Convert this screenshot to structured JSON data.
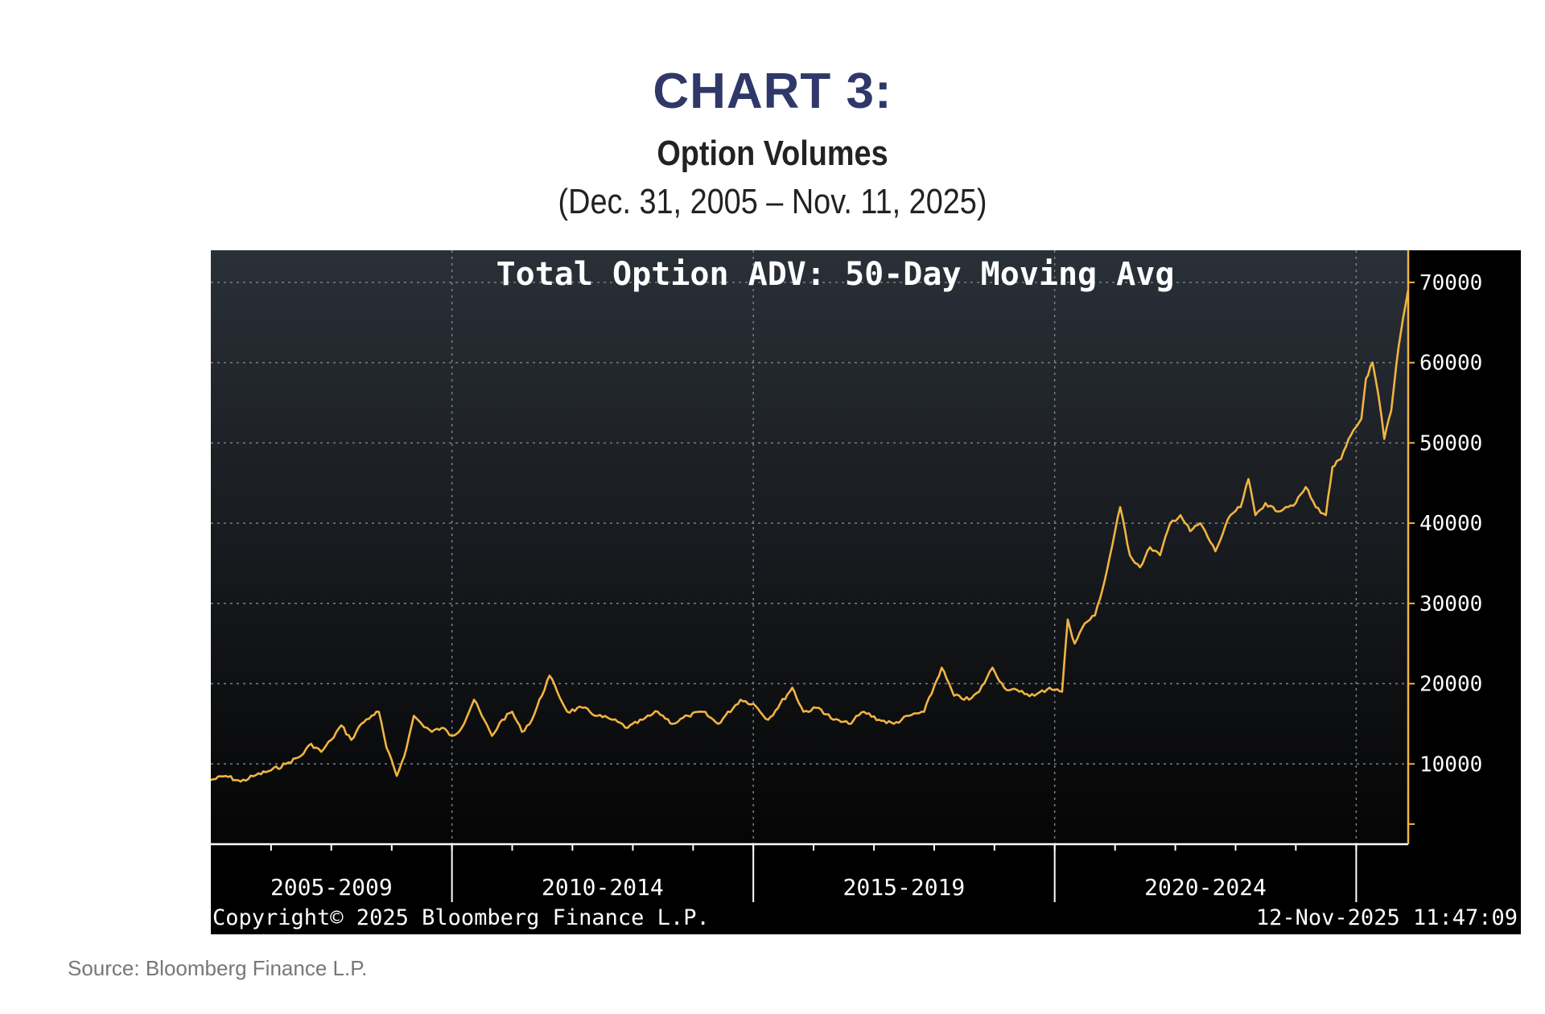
{
  "header": {
    "chart_number": "CHART 3:",
    "title": "Option Volumes",
    "date_range": "(Dec. 31, 2005 – Nov. 11, 2025)"
  },
  "footer": {
    "source": "Source: Bloomberg Finance L.P."
  },
  "chart_data": {
    "type": "line",
    "title": "Total Option ADV: 50-Day Moving Avg",
    "copyright": "Copyright© 2025 Bloomberg Finance L.P.",
    "timestamp": "12-Nov-2025 11:47:09",
    "xlabel": "",
    "ylabel": "",
    "x_range": [
      "2006-01-01",
      "2025-11-12"
    ],
    "ylim": [
      0,
      74000
    ],
    "y_ticks": [
      10000,
      20000,
      30000,
      40000,
      50000,
      60000,
      70000
    ],
    "y_tick_labels": [
      "10000",
      "20000",
      "30000",
      "40000",
      "50000",
      "60000",
      "70000"
    ],
    "x_period_labels": [
      {
        "label": "2005-2009",
        "from": "2006-01-01",
        "to": "2010-01-01"
      },
      {
        "label": "2010-2014",
        "from": "2010-01-01",
        "to": "2015-01-01"
      },
      {
        "label": "2015-2019",
        "from": "2015-01-01",
        "to": "2020-01-01"
      },
      {
        "label": "2020-2024",
        "from": "2020-01-01",
        "to": "2025-01-01"
      }
    ],
    "grid": true,
    "colors": {
      "background_top": "#2a3038",
      "background_bottom": "#050505",
      "line": "#f0b440",
      "axis": "#f0b440",
      "text": "#ffffff",
      "grid": "#7a7f85"
    },
    "series": [
      {
        "values": [
          [
            "2006-01-01",
            8000
          ],
          [
            "2006-04-01",
            8500
          ],
          [
            "2006-07-01",
            7800
          ],
          [
            "2006-10-01",
            8600
          ],
          [
            "2007-01-01",
            9200
          ],
          [
            "2007-04-01",
            10000
          ],
          [
            "2007-07-01",
            11000
          ],
          [
            "2007-09-01",
            12500
          ],
          [
            "2007-11-01",
            11500
          ],
          [
            "2008-01-01",
            13000
          ],
          [
            "2008-03-01",
            14800
          ],
          [
            "2008-05-01",
            13000
          ],
          [
            "2008-07-01",
            15000
          ],
          [
            "2008-09-01",
            16000
          ],
          [
            "2008-10-15",
            16500
          ],
          [
            "2008-12-01",
            12000
          ],
          [
            "2009-02-01",
            8500
          ],
          [
            "2009-04-01",
            12000
          ],
          [
            "2009-05-15",
            16000
          ],
          [
            "2009-07-01",
            15000
          ],
          [
            "2009-09-01",
            14000
          ],
          [
            "2009-11-01",
            14500
          ],
          [
            "2010-01-01",
            13500
          ],
          [
            "2010-03-01",
            14500
          ],
          [
            "2010-05-15",
            18000
          ],
          [
            "2010-07-01",
            16000
          ],
          [
            "2010-09-01",
            13500
          ],
          [
            "2010-11-01",
            15500
          ],
          [
            "2011-01-01",
            16500
          ],
          [
            "2011-03-01",
            14000
          ],
          [
            "2011-05-01",
            15500
          ],
          [
            "2011-08-15",
            21000
          ],
          [
            "2011-10-01",
            19000
          ],
          [
            "2011-12-01",
            16500
          ],
          [
            "2012-03-01",
            17000
          ],
          [
            "2012-06-01",
            16000
          ],
          [
            "2012-09-01",
            15500
          ],
          [
            "2012-12-01",
            14500
          ],
          [
            "2013-03-01",
            15500
          ],
          [
            "2013-06-01",
            16500
          ],
          [
            "2013-09-01",
            15000
          ],
          [
            "2013-12-01",
            16000
          ],
          [
            "2014-03-01",
            16500
          ],
          [
            "2014-06-01",
            15000
          ],
          [
            "2014-10-15",
            18000
          ],
          [
            "2015-01-01",
            17500
          ],
          [
            "2015-04-01",
            15500
          ],
          [
            "2015-08-25",
            19500
          ],
          [
            "2015-11-01",
            16500
          ],
          [
            "2016-02-01",
            17000
          ],
          [
            "2016-05-01",
            15500
          ],
          [
            "2016-08-01",
            15000
          ],
          [
            "2016-11-01",
            16500
          ],
          [
            "2017-02-01",
            15500
          ],
          [
            "2017-05-01",
            15000
          ],
          [
            "2017-08-01",
            16000
          ],
          [
            "2017-11-01",
            16500
          ],
          [
            "2018-02-15",
            22000
          ],
          [
            "2018-05-01",
            18500
          ],
          [
            "2018-08-01",
            18000
          ],
          [
            "2018-10-01",
            19000
          ],
          [
            "2018-12-20",
            22000
          ],
          [
            "2019-03-01",
            19500
          ],
          [
            "2019-06-01",
            19000
          ],
          [
            "2019-09-01",
            18500
          ],
          [
            "2019-12-01",
            19500
          ],
          [
            "2020-02-15",
            19000
          ],
          [
            "2020-03-20",
            28000
          ],
          [
            "2020-05-01",
            25000
          ],
          [
            "2020-07-01",
            27500
          ],
          [
            "2020-09-01",
            28500
          ],
          [
            "2020-11-01",
            33000
          ],
          [
            "2021-02-01",
            42000
          ],
          [
            "2021-04-01",
            36000
          ],
          [
            "2021-06-01",
            34500
          ],
          [
            "2021-08-01",
            37000
          ],
          [
            "2021-10-01",
            36000
          ],
          [
            "2021-12-01",
            40000
          ],
          [
            "2022-02-01",
            41000
          ],
          [
            "2022-04-01",
            39000
          ],
          [
            "2022-06-01",
            40000
          ],
          [
            "2022-09-01",
            36500
          ],
          [
            "2022-12-01",
            41000
          ],
          [
            "2023-02-01",
            42000
          ],
          [
            "2023-03-20",
            45500
          ],
          [
            "2023-05-01",
            41000
          ],
          [
            "2023-07-01",
            42500
          ],
          [
            "2023-09-01",
            41500
          ],
          [
            "2023-11-01",
            42000
          ],
          [
            "2024-01-01",
            42500
          ],
          [
            "2024-03-01",
            44500
          ],
          [
            "2024-05-01",
            42000
          ],
          [
            "2024-07-01",
            41000
          ],
          [
            "2024-08-10",
            47000
          ],
          [
            "2024-10-01",
            48000
          ],
          [
            "2024-12-01",
            51000
          ],
          [
            "2025-02-01",
            53000
          ],
          [
            "2025-03-01",
            58000
          ],
          [
            "2025-04-10",
            60000
          ],
          [
            "2025-05-15",
            56000
          ],
          [
            "2025-06-20",
            50500
          ],
          [
            "2025-08-01",
            54000
          ],
          [
            "2025-09-15",
            62000
          ],
          [
            "2025-11-11",
            69000
          ]
        ]
      }
    ]
  }
}
